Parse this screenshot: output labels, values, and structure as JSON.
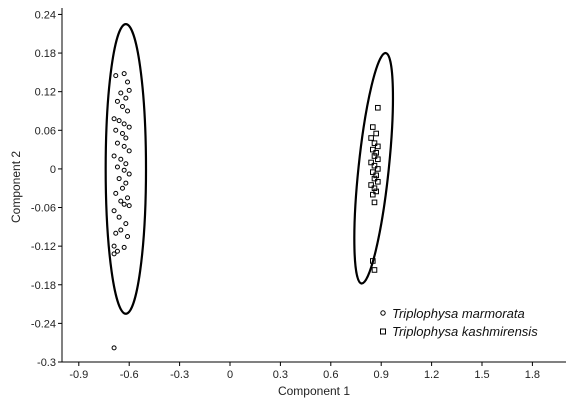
{
  "chart_data": {
    "type": "scatter",
    "xlabel": "Component 1",
    "ylabel": "Component 2",
    "xlim": [
      -1.0,
      2.0
    ],
    "ylim": [
      -0.3,
      0.25
    ],
    "xticks": [
      -0.9,
      -0.6,
      -0.3,
      0,
      0.3,
      0.6,
      0.9,
      1.2,
      1.5,
      1.8
    ],
    "xtick_labels": [
      "-0.9",
      "-0.6",
      "-0.3",
      "0",
      "0.3",
      "0.6",
      "0.9",
      "1.2",
      "1.5",
      "1.8"
    ],
    "yticks": [
      -0.3,
      -0.24,
      -0.18,
      -0.12,
      -0.06,
      0,
      0.06,
      0.12,
      0.18,
      0.24
    ],
    "ytick_labels": [
      "-0.3",
      "-0.24",
      "-0.18",
      "-0.12",
      "-0.06",
      "0",
      "0.06",
      "0.12",
      "0.18",
      "0.24"
    ],
    "grid": false,
    "legend_position": "bottom-right",
    "series": [
      {
        "name": "Triplophysa marmorata",
        "marker": "circle",
        "color": "#000000",
        "points": [
          [
            -0.68,
            0.145
          ],
          [
            -0.63,
            0.148
          ],
          [
            -0.61,
            0.135
          ],
          [
            -0.6,
            0.122
          ],
          [
            -0.65,
            0.118
          ],
          [
            -0.62,
            0.11
          ],
          [
            -0.67,
            0.105
          ],
          [
            -0.64,
            0.097
          ],
          [
            -0.61,
            0.09
          ],
          [
            -0.69,
            0.078
          ],
          [
            -0.66,
            0.075
          ],
          [
            -0.63,
            0.07
          ],
          [
            -0.6,
            0.065
          ],
          [
            -0.68,
            0.06
          ],
          [
            -0.64,
            0.055
          ],
          [
            -0.62,
            0.048
          ],
          [
            -0.67,
            0.04
          ],
          [
            -0.63,
            0.035
          ],
          [
            -0.6,
            0.028
          ],
          [
            -0.69,
            0.02
          ],
          [
            -0.65,
            0.015
          ],
          [
            -0.62,
            0.008
          ],
          [
            -0.67,
            0.003
          ],
          [
            -0.63,
            -0.002
          ],
          [
            -0.6,
            -0.008
          ],
          [
            -0.66,
            -0.015
          ],
          [
            -0.62,
            -0.022
          ],
          [
            -0.64,
            -0.03
          ],
          [
            -0.68,
            -0.038
          ],
          [
            -0.61,
            -0.045
          ],
          [
            -0.65,
            -0.05
          ],
          [
            -0.63,
            -0.055
          ],
          [
            -0.6,
            -0.057
          ],
          [
            -0.69,
            -0.065
          ],
          [
            -0.66,
            -0.075
          ],
          [
            -0.62,
            -0.085
          ],
          [
            -0.65,
            -0.095
          ],
          [
            -0.68,
            -0.1
          ],
          [
            -0.61,
            -0.105
          ],
          [
            -0.69,
            -0.12
          ],
          [
            -0.63,
            -0.122
          ],
          [
            -0.67,
            -0.128
          ],
          [
            -0.69,
            -0.132
          ],
          [
            -0.69,
            -0.278
          ]
        ]
      },
      {
        "name": "Triplophysa kashmirensis",
        "marker": "square",
        "color": "#000000",
        "points": [
          [
            0.88,
            0.095
          ],
          [
            0.85,
            0.065
          ],
          [
            0.87,
            0.055
          ],
          [
            0.84,
            0.048
          ],
          [
            0.86,
            0.04
          ],
          [
            0.88,
            0.035
          ],
          [
            0.85,
            0.03
          ],
          [
            0.87,
            0.025
          ],
          [
            0.86,
            0.02
          ],
          [
            0.88,
            0.015
          ],
          [
            0.84,
            0.01
          ],
          [
            0.86,
            0.005
          ],
          [
            0.88,
            0.0
          ],
          [
            0.85,
            -0.005
          ],
          [
            0.87,
            -0.01
          ],
          [
            0.86,
            -0.015
          ],
          [
            0.88,
            -0.02
          ],
          [
            0.84,
            -0.025
          ],
          [
            0.86,
            -0.03
          ],
          [
            0.87,
            -0.035
          ],
          [
            0.85,
            -0.04
          ],
          [
            0.86,
            -0.052
          ],
          [
            0.85,
            -0.143
          ],
          [
            0.86,
            -0.157
          ]
        ]
      }
    ],
    "ellipses": [
      {
        "center": [
          -0.62,
          0.0
        ],
        "semi_axis_x": 0.12,
        "semi_axis_y": 0.225,
        "rotation_deg": 0
      },
      {
        "center": [
          0.855,
          0.001
        ],
        "semi_axis_x": 0.09,
        "semi_axis_y": 0.18,
        "rotation_deg": -6
      }
    ]
  }
}
